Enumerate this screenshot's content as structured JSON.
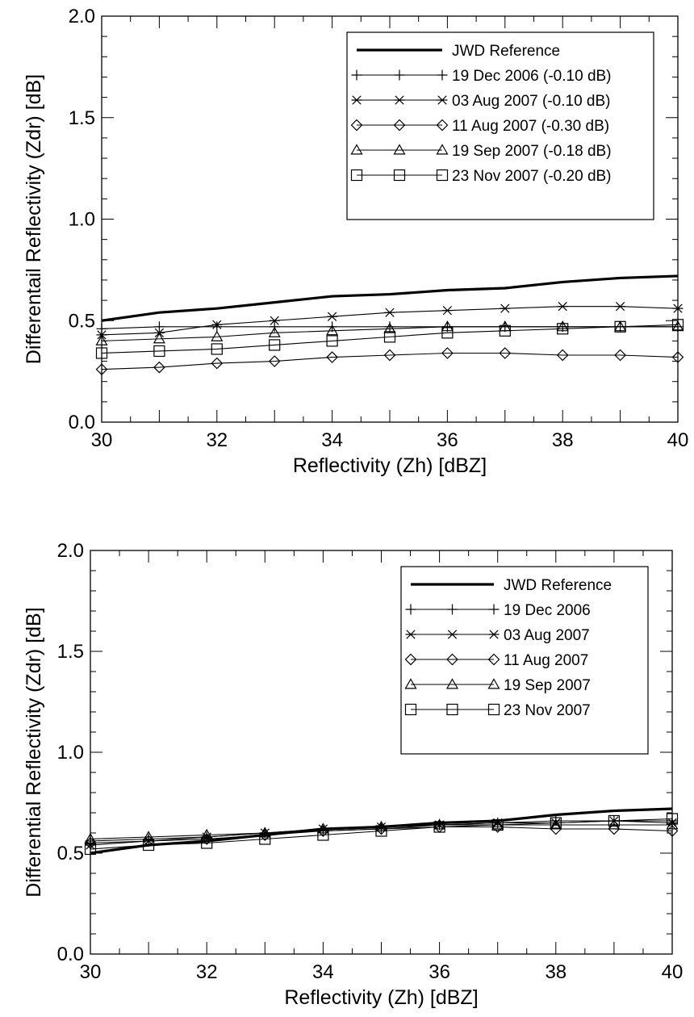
{
  "chart_data": [
    {
      "type": "line",
      "title": "",
      "xlabel": "Reflectivity (Zh) [dBZ]",
      "ylabel": "Differentail Reflectivity (Zdr) [dB]",
      "xlim": [
        30,
        40
      ],
      "ylim": [
        0.0,
        2.0
      ],
      "xticks": [
        30,
        32,
        34,
        36,
        38,
        40
      ],
      "xtick_labels": [
        "30",
        "32",
        "34",
        "36",
        "38",
        "40"
      ],
      "yticks": [
        0.0,
        0.5,
        1.0,
        1.5,
        2.0
      ],
      "ytick_labels": [
        "0.0",
        "0.5",
        "1.0",
        "1.5",
        "2.0"
      ],
      "grid": false,
      "legend_position": "top-right",
      "x": [
        30,
        31,
        32,
        33,
        34,
        35,
        36,
        37,
        38,
        39,
        40
      ],
      "series": [
        {
          "name": "JWD Reference",
          "marker": "none",
          "values": [
            0.5,
            0.54,
            0.56,
            0.59,
            0.62,
            0.63,
            0.65,
            0.66,
            0.69,
            0.71,
            0.72
          ]
        },
        {
          "name": "19 Dec 2006 (-0.10 dB)",
          "marker": "plus",
          "values": [
            0.46,
            0.47,
            0.47,
            0.47,
            0.47,
            0.47,
            0.47,
            0.47,
            0.47,
            0.47,
            0.47
          ]
        },
        {
          "name": "03 Aug 2007 (-0.10 dB)",
          "marker": "asterisk",
          "values": [
            0.43,
            0.44,
            0.48,
            0.5,
            0.52,
            0.54,
            0.55,
            0.56,
            0.57,
            0.57,
            0.56
          ]
        },
        {
          "name": "11 Aug 2007 (-0.30 dB)",
          "marker": "diamond",
          "values": [
            0.26,
            0.27,
            0.29,
            0.3,
            0.32,
            0.33,
            0.34,
            0.34,
            0.33,
            0.33,
            0.32
          ]
        },
        {
          "name": "19 Sep 2007 (-0.18 dB)",
          "marker": "triangle",
          "values": [
            0.4,
            0.41,
            0.42,
            0.44,
            0.45,
            0.46,
            0.47,
            0.47,
            0.47,
            0.47,
            0.47
          ]
        },
        {
          "name": "23 Nov 2007 (-0.20 dB)",
          "marker": "square",
          "values": [
            0.34,
            0.35,
            0.36,
            0.38,
            0.4,
            0.42,
            0.44,
            0.45,
            0.46,
            0.47,
            0.48
          ]
        }
      ]
    },
    {
      "type": "line",
      "title": "",
      "xlabel": "Reflectivity (Zh) [dBZ]",
      "ylabel": "Differential Reflectivity (Zdr) [dB]",
      "xlim": [
        30,
        40
      ],
      "ylim": [
        0.0,
        2.0
      ],
      "xticks": [
        30,
        32,
        34,
        36,
        38,
        40
      ],
      "xtick_labels": [
        "30",
        "32",
        "34",
        "36",
        "38",
        "40"
      ],
      "yticks": [
        0.0,
        0.5,
        1.0,
        1.5,
        2.0
      ],
      "ytick_labels": [
        "0.0",
        "0.5",
        "1.0",
        "1.5",
        "2.0"
      ],
      "grid": false,
      "legend_position": "top-right",
      "x": [
        30,
        31,
        32,
        33,
        34,
        35,
        36,
        37,
        38,
        39,
        40
      ],
      "series": [
        {
          "name": "JWD Reference",
          "marker": "none",
          "values": [
            0.5,
            0.54,
            0.56,
            0.59,
            0.62,
            0.63,
            0.65,
            0.66,
            0.69,
            0.71,
            0.72
          ]
        },
        {
          "name": "19 Dec 2006",
          "marker": "plus",
          "values": [
            0.56,
            0.57,
            0.58,
            0.6,
            0.61,
            0.62,
            0.64,
            0.65,
            0.66,
            0.66,
            0.66
          ]
        },
        {
          "name": "03 Aug 2007",
          "marker": "asterisk",
          "values": [
            0.54,
            0.56,
            0.58,
            0.6,
            0.62,
            0.63,
            0.64,
            0.65,
            0.65,
            0.66,
            0.65
          ]
        },
        {
          "name": "11 Aug 2007",
          "marker": "diamond",
          "values": [
            0.55,
            0.56,
            0.57,
            0.59,
            0.61,
            0.62,
            0.63,
            0.63,
            0.62,
            0.62,
            0.61
          ]
        },
        {
          "name": "19 Sep 2007",
          "marker": "triangle",
          "values": [
            0.57,
            0.58,
            0.59,
            0.6,
            0.62,
            0.63,
            0.64,
            0.64,
            0.64,
            0.64,
            0.64
          ]
        },
        {
          "name": "23 Nov 2007",
          "marker": "square",
          "values": [
            0.52,
            0.54,
            0.55,
            0.57,
            0.59,
            0.61,
            0.63,
            0.64,
            0.65,
            0.66,
            0.67
          ]
        }
      ]
    }
  ]
}
